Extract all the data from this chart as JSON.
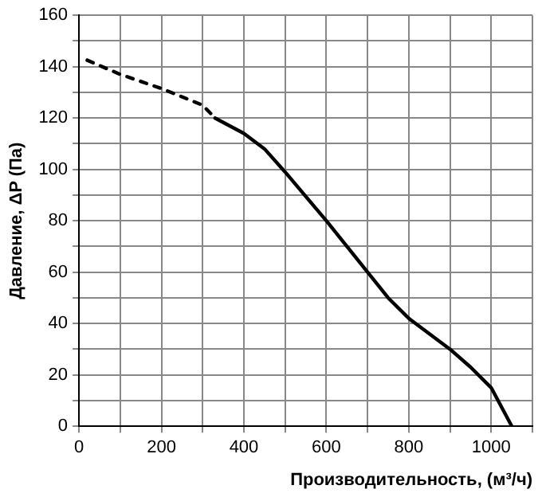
{
  "chart_data": {
    "type": "line",
    "xlabel": "Производительность, (м³/ч)",
    "ylabel": "Давление, ΔP (Па)",
    "xlim": [
      0,
      1100
    ],
    "xticks": [
      0,
      {
        "value": 100,
        "label": null
      },
      200,
      {
        "value": 300,
        "label": null
      },
      400,
      {
        "value": 500,
        "label": null
      },
      600,
      {
        "value": 700,
        "label": null
      },
      800,
      {
        "value": 900,
        "label": null
      },
      1000,
      {
        "value": 1100,
        "label": null
      }
    ],
    "ylim": [
      0,
      160
    ],
    "yticks": [
      0,
      {
        "value": 10,
        "label": null
      },
      20,
      {
        "value": 30,
        "label": null
      },
      40,
      {
        "value": 50,
        "label": null
      },
      60,
      {
        "value": 70,
        "label": null
      },
      80,
      {
        "value": 90,
        "label": null
      },
      100,
      {
        "value": 110,
        "label": null
      },
      120,
      {
        "value": 130,
        "label": null
      },
      140,
      {
        "value": 150,
        "label": null
      },
      160
    ],
    "grid": true,
    "legend": false,
    "marker": "none",
    "series": [
      {
        "color": "#000000",
        "line_style": "dashed",
        "x": [
          20,
          100,
          200,
          300,
          330
        ],
        "values": [
          142.5,
          137,
          131.5,
          125,
          120
        ]
      },
      {
        "color": "#000000",
        "line_style": "solid",
        "x": [
          330,
          400,
          450,
          500,
          600,
          700,
          750,
          800,
          900,
          950,
          1000,
          1050
        ],
        "values": [
          120,
          114,
          108,
          99,
          80,
          60,
          50,
          42,
          30,
          23,
          15,
          0
        ]
      }
    ]
  }
}
